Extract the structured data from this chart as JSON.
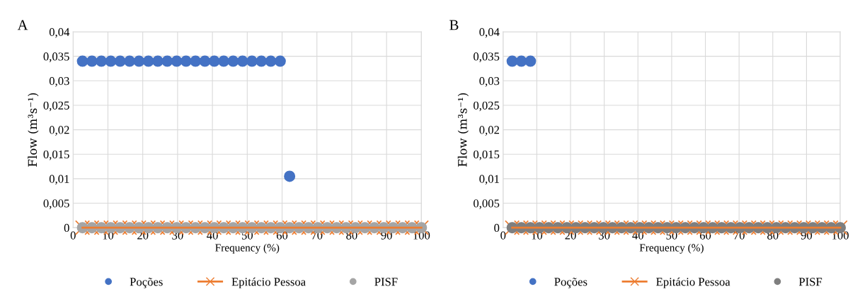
{
  "chart_data": [
    {
      "type": "scatter",
      "title": "A",
      "xlabel": "Frequency (%)",
      "ylabel": "Flow (m³s⁻¹)",
      "x": [
        2.7,
        5.41,
        8.11,
        10.81,
        13.51,
        16.22,
        18.92,
        21.62,
        24.32,
        27.03,
        29.73,
        32.43,
        35.14,
        37.84,
        40.54,
        43.24,
        45.95,
        48.65,
        51.35,
        54.05,
        56.76,
        59.46,
        62.16,
        64.86,
        67.57,
        70.27,
        72.97,
        75.68,
        78.38,
        81.08,
        83.78,
        86.49,
        89.19,
        91.89,
        94.59,
        97.3,
        100
      ],
      "series": [
        {
          "name": "Poções",
          "marker": "circle",
          "color": "#4472c4",
          "values": [
            0.034,
            0.034,
            0.034,
            0.034,
            0.034,
            0.034,
            0.034,
            0.034,
            0.034,
            0.034,
            0.034,
            0.034,
            0.034,
            0.034,
            0.034,
            0.034,
            0.034,
            0.034,
            0.034,
            0.034,
            0.034,
            0.034,
            0.0105,
            null,
            null,
            null,
            null,
            null,
            null,
            null,
            null,
            null,
            null,
            null,
            null,
            null,
            null
          ]
        },
        {
          "name": "Epitácio Pessoa",
          "type": "line",
          "marker": "cross",
          "color": "#ed7d31",
          "values": [
            0,
            0,
            0,
            0,
            0,
            0,
            0,
            0,
            0,
            0,
            0,
            0,
            0,
            0,
            0,
            0,
            0,
            0,
            0,
            0,
            0,
            0,
            0,
            0,
            0,
            0,
            0,
            0,
            0,
            0,
            0,
            0,
            0,
            0,
            0,
            0,
            0
          ]
        },
        {
          "name": "PISF",
          "marker": "circle",
          "color": "#a5a5a5",
          "values": [
            0,
            0,
            0,
            0,
            0,
            0,
            0,
            0,
            0,
            0,
            0,
            0,
            0,
            0,
            0,
            0,
            0,
            0,
            0,
            0,
            0,
            0,
            0,
            0,
            0,
            0,
            0,
            0,
            0,
            0,
            0,
            0,
            0,
            0,
            0,
            0,
            0
          ]
        }
      ],
      "xlim": [
        0,
        100
      ],
      "xticks": [
        0,
        10,
        20,
        30,
        40,
        50,
        60,
        70,
        80,
        90,
        100
      ],
      "ylim": [
        0,
        0.04
      ],
      "yticks": [
        {
          "value": 0,
          "label": "0"
        },
        {
          "value": 0.005,
          "label": "0,005"
        },
        {
          "value": 0.01,
          "label": "0,01"
        },
        {
          "value": 0.015,
          "label": "0,015"
        },
        {
          "value": 0.02,
          "label": "0,02"
        },
        {
          "value": 0.025,
          "label": "0,025"
        },
        {
          "value": 0.03,
          "label": "0,03"
        },
        {
          "value": 0.035,
          "label": "0,035"
        },
        {
          "value": 0.04,
          "label": "0,04"
        }
      ],
      "grid": true,
      "legend": "bottom"
    },
    {
      "type": "scatter",
      "title": "B",
      "xlabel": "Frequency (%)",
      "ylabel": "Flow (m³s⁻¹)",
      "x": [
        2.7,
        5.41,
        8.11,
        10.81,
        13.51,
        16.22,
        18.92,
        21.62,
        24.32,
        27.03,
        29.73,
        32.43,
        35.14,
        37.84,
        40.54,
        43.24,
        45.95,
        48.65,
        51.35,
        54.05,
        56.76,
        59.46,
        62.16,
        64.86,
        67.57,
        70.27,
        72.97,
        75.68,
        78.38,
        81.08,
        83.78,
        86.49,
        89.19,
        91.89,
        94.59,
        97.3,
        100
      ],
      "series": [
        {
          "name": "Poções",
          "marker": "circle",
          "color": "#4472c4",
          "values": [
            0.034,
            0.034,
            0.034,
            null,
            null,
            null,
            null,
            null,
            null,
            null,
            null,
            null,
            null,
            null,
            null,
            null,
            null,
            null,
            null,
            null,
            null,
            null,
            null,
            null,
            null,
            null,
            null,
            null,
            null,
            null,
            null,
            null,
            null,
            null,
            null,
            null,
            null
          ]
        },
        {
          "name": "Epitácio Pessoa",
          "type": "line",
          "marker": "cross",
          "color": "#ed7d31",
          "values": [
            0,
            0,
            0,
            0,
            0,
            0,
            0,
            0,
            0,
            0,
            0,
            0,
            0,
            0,
            0,
            0,
            0,
            0,
            0,
            0,
            0,
            0,
            0,
            0,
            0,
            0,
            0,
            0,
            0,
            0,
            0,
            0,
            0,
            0,
            0,
            0,
            0
          ]
        },
        {
          "name": "PISF",
          "marker": "circle",
          "color": "#7f7f7f",
          "values": [
            0,
            0,
            0,
            0,
            0,
            0,
            0,
            0,
            0,
            0,
            0,
            0,
            0,
            0,
            0,
            0,
            0,
            0,
            0,
            0,
            0,
            0,
            0,
            0,
            0,
            0,
            0,
            0,
            0,
            0,
            0,
            0,
            0,
            0,
            0,
            0,
            0
          ]
        }
      ],
      "xlim": [
        0,
        100
      ],
      "xticks": [
        0,
        10,
        20,
        30,
        40,
        50,
        60,
        70,
        80,
        90,
        100
      ],
      "ylim": [
        0,
        0.04
      ],
      "yticks": [
        {
          "value": 0,
          "label": "0"
        },
        {
          "value": 0.005,
          "label": "0,005"
        },
        {
          "value": 0.01,
          "label": "0,01"
        },
        {
          "value": 0.015,
          "label": "0,015"
        },
        {
          "value": 0.02,
          "label": "0,02"
        },
        {
          "value": 0.025,
          "label": "0,025"
        },
        {
          "value": 0.03,
          "label": "0,03"
        },
        {
          "value": 0.035,
          "label": "0,035"
        },
        {
          "value": 0.04,
          "label": "0,04"
        }
      ],
      "grid": true,
      "legend": "bottom"
    }
  ]
}
